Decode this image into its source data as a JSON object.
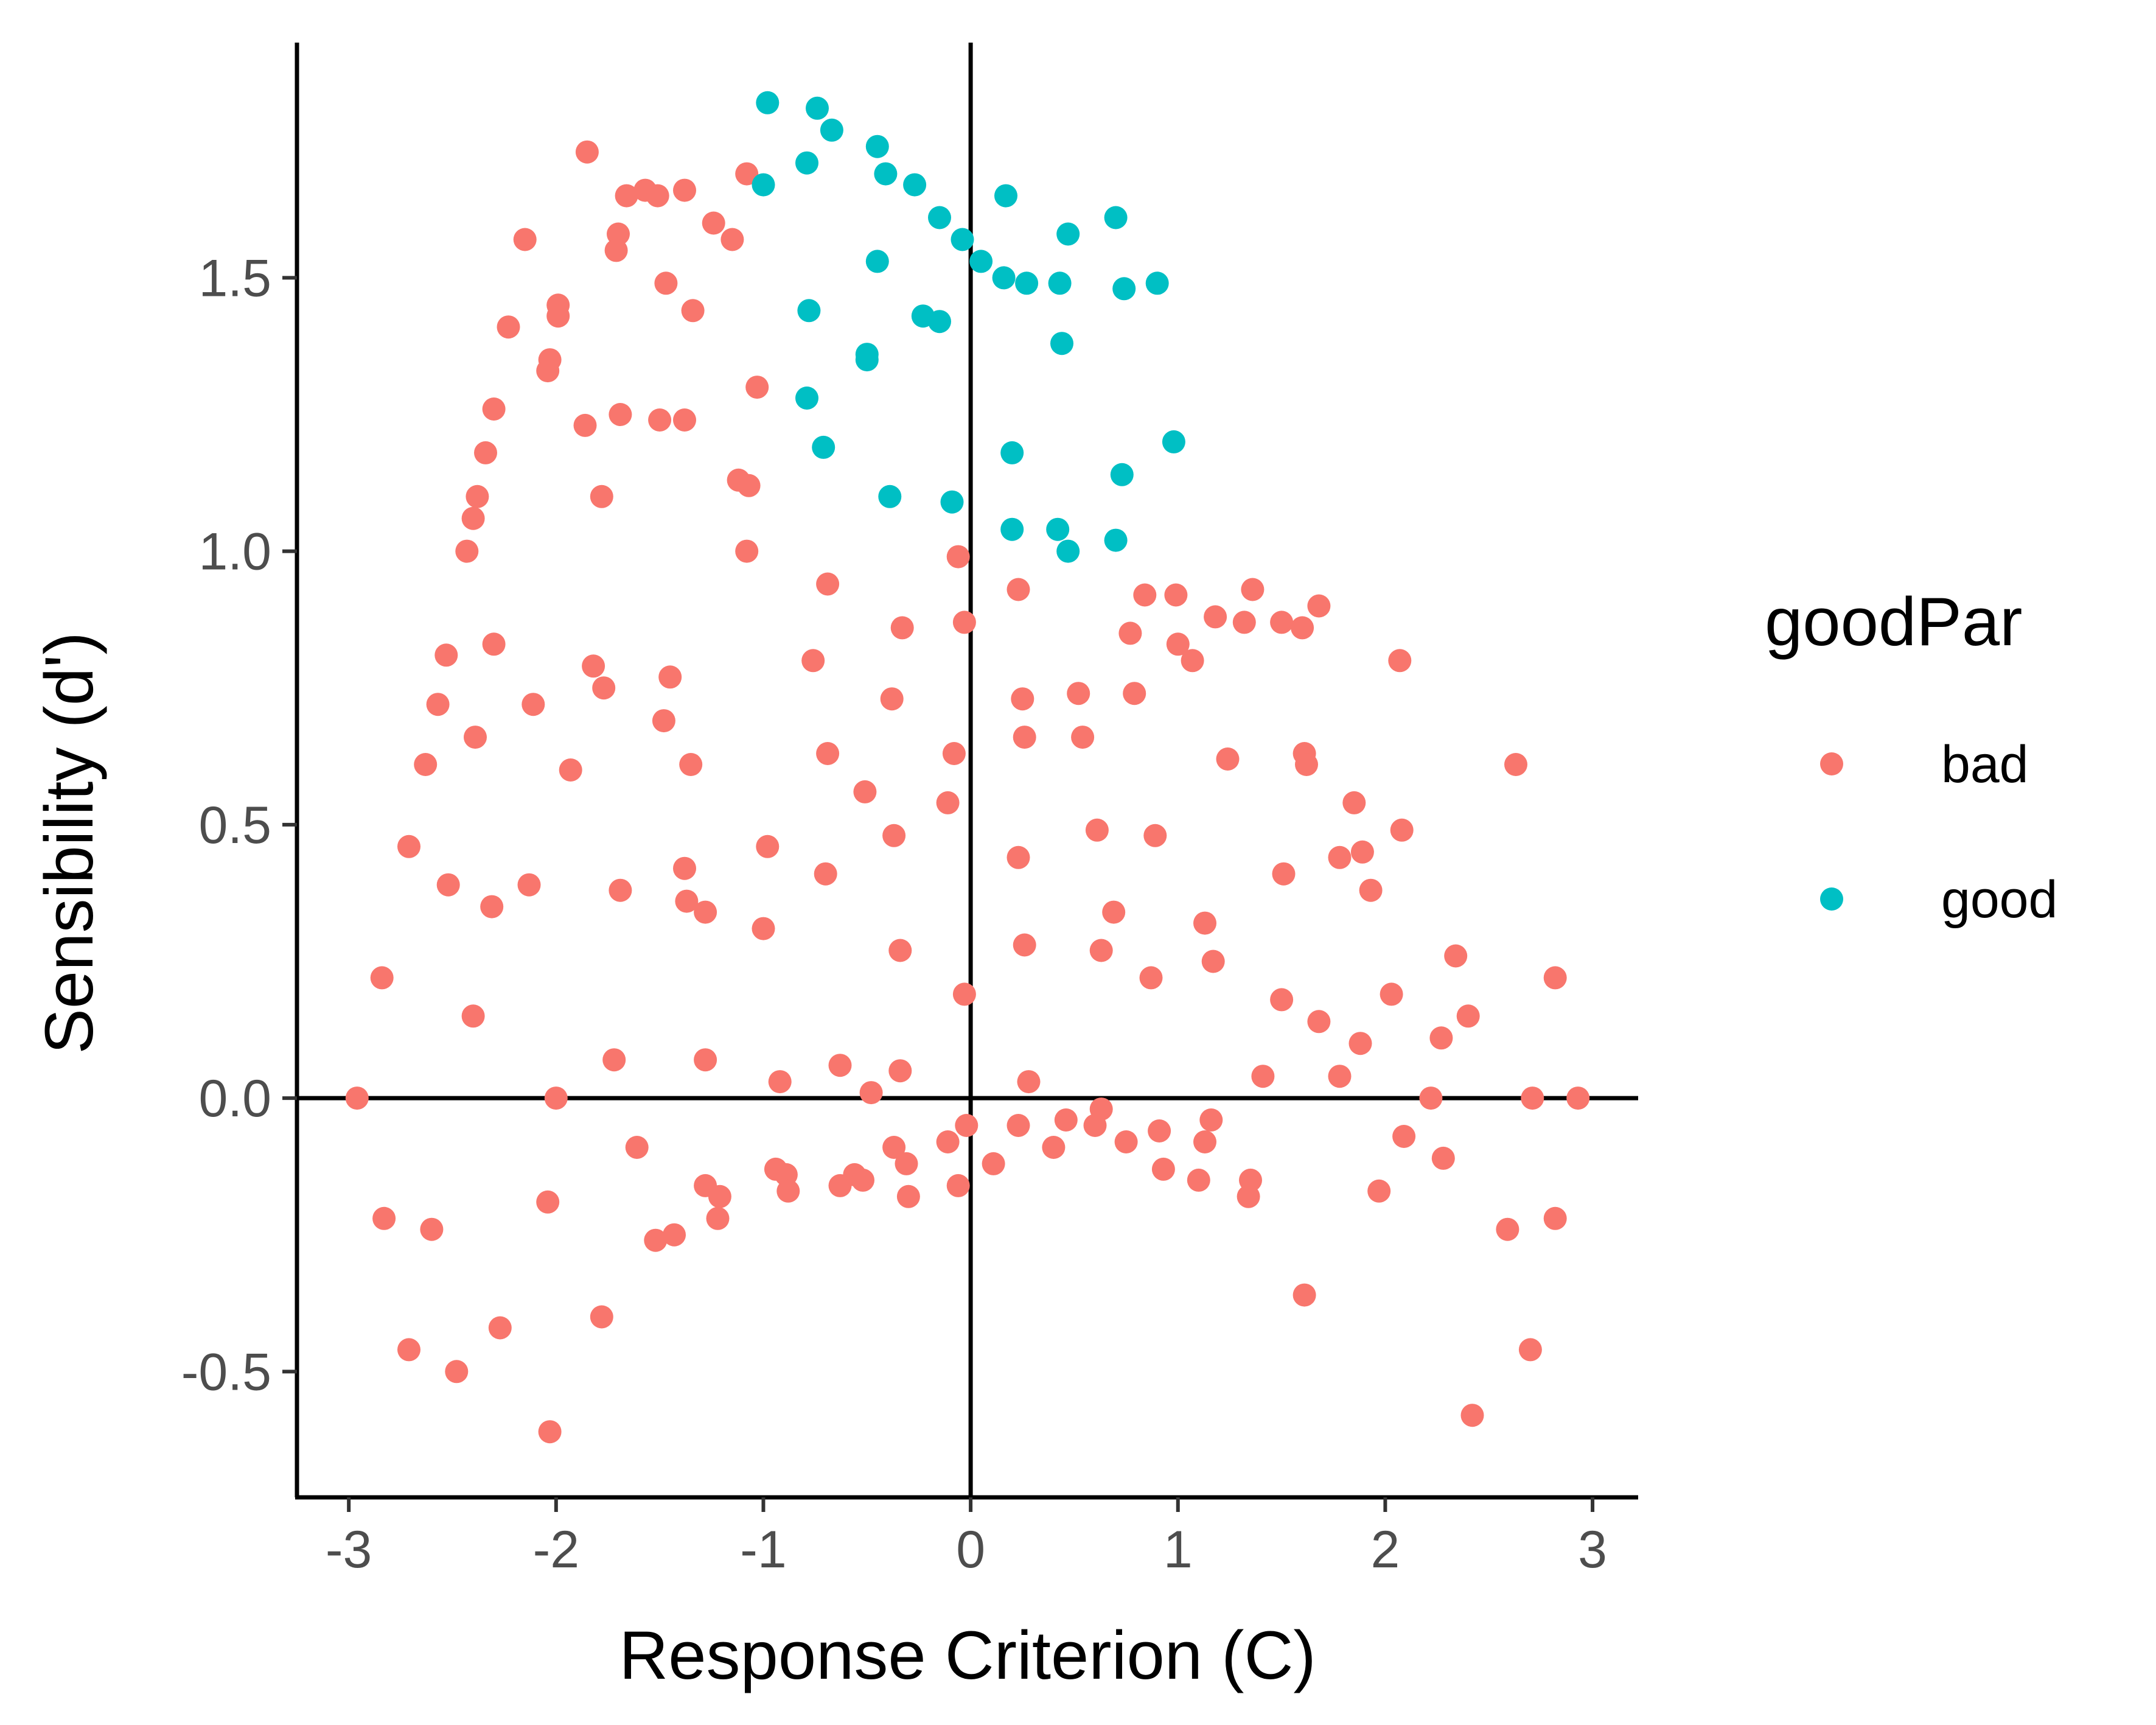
{
  "chart_data": {
    "type": "scatter",
    "xlabel": "Response Criterion (C)",
    "ylabel": "Sensibility (d')",
    "xlim": [
      -3.25,
      3.22
    ],
    "ylim": [
      -0.73,
      1.93
    ],
    "x_ticks": [
      -3,
      -2,
      -1,
      0,
      1,
      2,
      3
    ],
    "x_tick_labels": [
      "-3",
      "-2",
      "-1",
      "0",
      "1",
      "2",
      "3"
    ],
    "y_ticks": [
      -0.5,
      0.0,
      0.5,
      1.0,
      1.5
    ],
    "y_tick_labels": [
      "-0.5",
      "0.0",
      "0.5",
      "1.0",
      "1.5"
    ],
    "reference_lines": {
      "x": 0,
      "y": 0
    },
    "grid": false,
    "legend": {
      "title": "goodPar",
      "position": "right",
      "entries": [
        {
          "label": "bad",
          "color": "#F8766D"
        },
        {
          "label": "good",
          "color": "#00BFC4"
        }
      ]
    },
    "series": [
      {
        "name": "bad",
        "color": "#F8766D",
        "points": [
          [
            -1.85,
            1.73
          ],
          [
            -1.38,
            1.66
          ],
          [
            -1.57,
            1.66
          ],
          [
            -1.66,
            1.65
          ],
          [
            -1.51,
            1.65
          ],
          [
            -1.08,
            1.69
          ],
          [
            -2.15,
            1.57
          ],
          [
            -1.7,
            1.58
          ],
          [
            -1.71,
            1.55
          ],
          [
            -1.24,
            1.6
          ],
          [
            -1.15,
            1.57
          ],
          [
            -1.47,
            1.49
          ],
          [
            -1.99,
            1.45
          ],
          [
            -1.99,
            1.43
          ],
          [
            -2.23,
            1.41
          ],
          [
            -1.34,
            1.44
          ],
          [
            -2.03,
            1.35
          ],
          [
            -2.04,
            1.33
          ],
          [
            -1.03,
            1.3
          ],
          [
            -2.3,
            1.26
          ],
          [
            -1.86,
            1.23
          ],
          [
            -1.69,
            1.25
          ],
          [
            -1.5,
            1.24
          ],
          [
            -1.38,
            1.24
          ],
          [
            -2.34,
            1.18
          ],
          [
            -1.78,
            1.1
          ],
          [
            -1.12,
            1.13
          ],
          [
            -1.07,
            1.12
          ],
          [
            -2.38,
            1.1
          ],
          [
            -2.4,
            1.06
          ],
          [
            -2.43,
            1.0
          ],
          [
            -1.08,
            1.0
          ],
          [
            -0.06,
            0.99
          ],
          [
            -0.69,
            0.94
          ],
          [
            0.23,
            0.93
          ],
          [
            0.84,
            0.92
          ],
          [
            0.99,
            0.92
          ],
          [
            1.36,
            0.93
          ],
          [
            1.18,
            0.88
          ],
          [
            1.32,
            0.87
          ],
          [
            1.5,
            0.87
          ],
          [
            1.6,
            0.86
          ],
          [
            1.68,
            0.9
          ],
          [
            0.77,
            0.85
          ],
          [
            1.0,
            0.83
          ],
          [
            1.07,
            0.8
          ],
          [
            -0.33,
            0.86
          ],
          [
            -0.03,
            0.87
          ],
          [
            2.07,
            0.8
          ],
          [
            -2.53,
            0.81
          ],
          [
            -2.3,
            0.83
          ],
          [
            -1.82,
            0.79
          ],
          [
            -0.76,
            0.8
          ],
          [
            -1.45,
            0.77
          ],
          [
            -1.77,
            0.75
          ],
          [
            -0.38,
            0.73
          ],
          [
            0.25,
            0.73
          ],
          [
            0.52,
            0.74
          ],
          [
            0.79,
            0.74
          ],
          [
            -2.57,
            0.72
          ],
          [
            -2.11,
            0.72
          ],
          [
            -1.48,
            0.69
          ],
          [
            -2.39,
            0.66
          ],
          [
            0.26,
            0.66
          ],
          [
            0.54,
            0.66
          ],
          [
            -0.69,
            0.63
          ],
          [
            -0.08,
            0.63
          ],
          [
            1.24,
            0.62
          ],
          [
            1.61,
            0.63
          ],
          [
            1.62,
            0.61
          ],
          [
            -2.63,
            0.61
          ],
          [
            -1.93,
            0.6
          ],
          [
            -1.35,
            0.61
          ],
          [
            2.63,
            0.61
          ],
          [
            -0.51,
            0.56
          ],
          [
            -0.11,
            0.54
          ],
          [
            1.85,
            0.54
          ],
          [
            -2.71,
            0.46
          ],
          [
            -0.98,
            0.46
          ],
          [
            -0.37,
            0.48
          ],
          [
            0.61,
            0.49
          ],
          [
            0.89,
            0.48
          ],
          [
            2.08,
            0.49
          ],
          [
            0.23,
            0.44
          ],
          [
            1.51,
            0.41
          ],
          [
            1.78,
            0.44
          ],
          [
            1.89,
            0.45
          ],
          [
            -2.52,
            0.39
          ],
          [
            -2.13,
            0.39
          ],
          [
            -1.69,
            0.38
          ],
          [
            -1.38,
            0.42
          ],
          [
            -0.7,
            0.41
          ],
          [
            1.93,
            0.38
          ],
          [
            -2.31,
            0.35
          ],
          [
            -1.37,
            0.36
          ],
          [
            -1.28,
            0.34
          ],
          [
            -1.0,
            0.31
          ],
          [
            0.69,
            0.34
          ],
          [
            1.13,
            0.32
          ],
          [
            -0.34,
            0.27
          ],
          [
            0.26,
            0.28
          ],
          [
            0.63,
            0.27
          ],
          [
            1.17,
            0.25
          ],
          [
            2.34,
            0.26
          ],
          [
            -2.84,
            0.22
          ],
          [
            -0.03,
            0.19
          ],
          [
            0.87,
            0.22
          ],
          [
            2.82,
            0.22
          ],
          [
            1.5,
            0.18
          ],
          [
            2.03,
            0.19
          ],
          [
            -2.4,
            0.15
          ],
          [
            1.68,
            0.14
          ],
          [
            1.88,
            0.1
          ],
          [
            2.27,
            0.11
          ],
          [
            2.4,
            0.15
          ],
          [
            -1.72,
            0.07
          ],
          [
            -1.28,
            0.07
          ],
          [
            -0.92,
            0.03
          ],
          [
            -0.63,
            0.06
          ],
          [
            -0.34,
            0.05
          ],
          [
            0.28,
            0.03
          ],
          [
            1.41,
            0.04
          ],
          [
            1.78,
            0.04
          ],
          [
            -2.96,
            0.0
          ],
          [
            -2.0,
            0.0
          ],
          [
            -0.48,
            0.01
          ],
          [
            2.22,
            0.0
          ],
          [
            2.71,
            0.0
          ],
          [
            2.93,
            0.0
          ],
          [
            -1.61,
            -0.09
          ],
          [
            -0.94,
            -0.13
          ],
          [
            -0.89,
            -0.14
          ],
          [
            -0.56,
            -0.14
          ],
          [
            -0.52,
            -0.15
          ],
          [
            -0.37,
            -0.09
          ],
          [
            -0.31,
            -0.12
          ],
          [
            -0.11,
            -0.08
          ],
          [
            -0.02,
            -0.05
          ],
          [
            0.23,
            -0.05
          ],
          [
            0.46,
            -0.04
          ],
          [
            0.6,
            -0.05
          ],
          [
            0.63,
            -0.02
          ],
          [
            0.91,
            -0.06
          ],
          [
            1.16,
            -0.04
          ],
          [
            0.75,
            -0.08
          ],
          [
            0.4,
            -0.09
          ],
          [
            0.11,
            -0.12
          ],
          [
            0.93,
            -0.13
          ],
          [
            1.13,
            -0.08
          ],
          [
            1.35,
            -0.15
          ],
          [
            2.09,
            -0.07
          ],
          [
            2.28,
            -0.11
          ],
          [
            -1.28,
            -0.16
          ],
          [
            -1.21,
            -0.18
          ],
          [
            -0.88,
            -0.17
          ],
          [
            -0.63,
            -0.16
          ],
          [
            -0.3,
            -0.18
          ],
          [
            -0.06,
            -0.16
          ],
          [
            1.1,
            -0.15
          ],
          [
            1.34,
            -0.18
          ],
          [
            1.97,
            -0.17
          ],
          [
            -2.04,
            -0.19
          ],
          [
            -2.83,
            -0.22
          ],
          [
            -2.6,
            -0.24
          ],
          [
            -1.52,
            -0.26
          ],
          [
            -1.43,
            -0.25
          ],
          [
            -1.22,
            -0.22
          ],
          [
            2.59,
            -0.24
          ],
          [
            2.82,
            -0.22
          ],
          [
            1.61,
            -0.36
          ],
          [
            -1.78,
            -0.4
          ],
          [
            -2.27,
            -0.42
          ],
          [
            -2.71,
            -0.46
          ],
          [
            -2.48,
            -0.5
          ],
          [
            2.7,
            -0.46
          ],
          [
            -2.03,
            -0.61
          ],
          [
            2.42,
            -0.58
          ]
        ]
      },
      {
        "name": "good",
        "color": "#00BFC4",
        "points": [
          [
            -0.98,
            1.82
          ],
          [
            -0.74,
            1.81
          ],
          [
            -0.67,
            1.77
          ],
          [
            -0.45,
            1.74
          ],
          [
            -0.79,
            1.71
          ],
          [
            -0.41,
            1.69
          ],
          [
            -1.0,
            1.67
          ],
          [
            -0.27,
            1.67
          ],
          [
            -0.15,
            1.61
          ],
          [
            0.17,
            1.65
          ],
          [
            0.7,
            1.61
          ],
          [
            -0.04,
            1.57
          ],
          [
            0.05,
            1.53
          ],
          [
            0.47,
            1.58
          ],
          [
            -0.45,
            1.53
          ],
          [
            0.16,
            1.5
          ],
          [
            0.27,
            1.49
          ],
          [
            0.43,
            1.49
          ],
          [
            0.74,
            1.48
          ],
          [
            0.9,
            1.49
          ],
          [
            -0.78,
            1.44
          ],
          [
            -0.23,
            1.43
          ],
          [
            -0.15,
            1.42
          ],
          [
            -0.5,
            1.36
          ],
          [
            -0.5,
            1.35
          ],
          [
            0.44,
            1.38
          ],
          [
            -0.79,
            1.28
          ],
          [
            -0.71,
            1.19
          ],
          [
            0.2,
            1.18
          ],
          [
            0.98,
            1.2
          ],
          [
            0.73,
            1.14
          ],
          [
            -0.39,
            1.1
          ],
          [
            -0.09,
            1.09
          ],
          [
            0.2,
            1.04
          ],
          [
            0.42,
            1.04
          ],
          [
            0.7,
            1.02
          ],
          [
            0.47,
            1.0
          ]
        ]
      }
    ]
  }
}
